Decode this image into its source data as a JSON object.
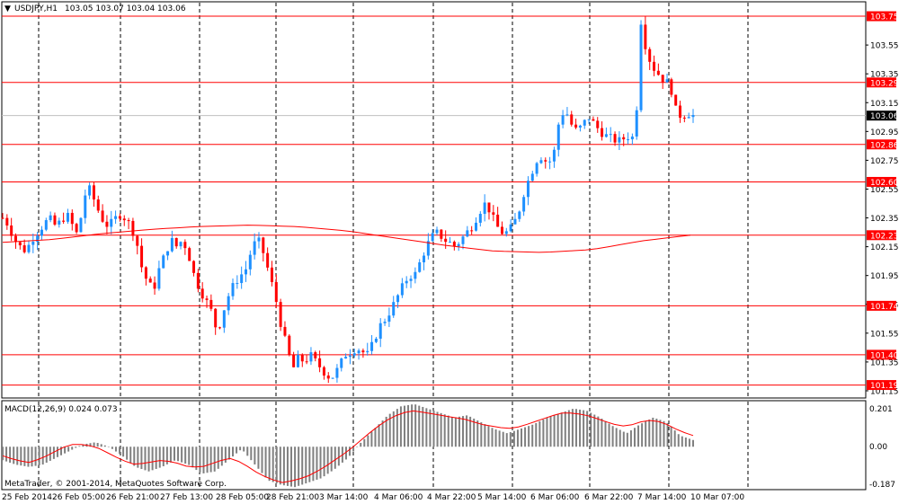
{
  "header": {
    "symbol_label": "USDJPY,H1",
    "ohlc_label": "103.05 103.07 103.04 103.06"
  },
  "macd": {
    "label": "MACD(12,26,9) 0.024 0.073",
    "axis_labels": [
      "0.201",
      "0.00",
      "-0.187"
    ]
  },
  "copyright": "MetaTrader, © 2001-2014, MetaQuotes Software Corp.",
  "colors": {
    "bull": "#1e90ff",
    "bear": "#ff0000",
    "level_line": "#ff0000",
    "ma_line": "#ff0000",
    "histogram": "#808080",
    "signal_line": "#ff0000",
    "grid": "#000000",
    "current_price_box": "#000000"
  },
  "chart_data": {
    "type": "candlestick",
    "symbol": "USDJPY",
    "timeframe": "H1",
    "price_axis": {
      "range": [
        101.1,
        103.85
      ],
      "tick_labels": [
        "103.55",
        "103.35",
        "103.15",
        "102.95",
        "102.75",
        "102.55",
        "102.35",
        "102.15",
        "101.95",
        "101.75",
        "101.55",
        "101.35",
        "101.15"
      ]
    },
    "time_axis_labels": [
      "25 Feb 2014",
      "26 Feb 05:00",
      "26 Feb 21:00",
      "27 Feb 13:00",
      "28 Feb 05:00",
      "28 Feb 21:00",
      "3 Mar 14:00",
      "4 Mar 06:00",
      "4 Mar 22:00",
      "5 Mar 14:00",
      "6 Mar 06:00",
      "6 Mar 22:00",
      "7 Mar 14:00",
      "10 Mar 07:00"
    ],
    "horizontal_levels": [
      "103.75",
      "103.29",
      "102.86",
      "102.60",
      "102.23",
      "101.74",
      "101.40",
      "101.19"
    ],
    "current_price": "103.06",
    "price_path": [
      102.35,
      102.3,
      102.2,
      102.15,
      102.12,
      102.2,
      102.25,
      102.3,
      102.35,
      102.3,
      102.32,
      102.38,
      102.3,
      102.22,
      102.5,
      102.55,
      102.45,
      102.35,
      102.3,
      102.32,
      102.38,
      102.35,
      102.3,
      102.2,
      102.0,
      101.9,
      101.85,
      102.0,
      102.1,
      102.2,
      102.15,
      102.2,
      102.1,
      101.95,
      101.85,
      101.78,
      101.7,
      101.55,
      101.7,
      101.82,
      101.9,
      101.95,
      102.0,
      102.15,
      102.2,
      102.1,
      101.95,
      101.8,
      101.6,
      101.45,
      101.3,
      101.38,
      101.35,
      101.4,
      101.35,
      101.3,
      101.25,
      101.25,
      101.32,
      101.4,
      101.42,
      101.45,
      101.42,
      101.4,
      101.5,
      101.6,
      101.65,
      101.72,
      101.8,
      101.88,
      101.95,
      101.95,
      102.05,
      102.15,
      102.22,
      102.25,
      102.2,
      102.18,
      102.15,
      102.2,
      102.25,
      102.3,
      102.38,
      102.45,
      102.4,
      102.3,
      102.25,
      102.25,
      102.3,
      102.4,
      102.55,
      102.65,
      102.75,
      102.78,
      102.72,
      102.8,
      103.05,
      103.1,
      103.0,
      102.95,
      103.0,
      103.05,
      103.0,
      102.95,
      102.92,
      102.9,
      102.88,
      102.9,
      102.92,
      102.9,
      103.72,
      103.5,
      103.4,
      103.35,
      103.3,
      103.28,
      103.1,
      103.05,
      103.08,
      103.06
    ],
    "ma_path": [
      102.18,
      102.2,
      102.24,
      102.27,
      102.29,
      102.3,
      102.29,
      102.26,
      102.21,
      102.16,
      102.12,
      102.11,
      102.13,
      102.19,
      102.23
    ],
    "macd_histogram_path": [
      -0.06,
      -0.08,
      -0.09,
      -0.08,
      -0.05,
      -0.02,
      0.01,
      0.02,
      0.0,
      -0.04,
      -0.09,
      -0.11,
      -0.09,
      -0.06,
      -0.08,
      -0.12,
      -0.11,
      -0.06,
      -0.01,
      -0.08,
      -0.15,
      -0.17,
      -0.18,
      -0.16,
      -0.14,
      -0.1,
      -0.05,
      0.02,
      0.08,
      0.14,
      0.18,
      0.19,
      0.17,
      0.15,
      0.13,
      0.14,
      0.11,
      0.08,
      0.06,
      0.08,
      0.1,
      0.13,
      0.15,
      0.17,
      0.16,
      0.13,
      0.09,
      0.06,
      0.1,
      0.13,
      0.11,
      0.05,
      0.03
    ],
    "macd_signal_path": [
      -0.04,
      -0.06,
      -0.07,
      -0.05,
      -0.02,
      0.01,
      0.01,
      0.0,
      -0.03,
      -0.06,
      -0.08,
      -0.07,
      -0.06,
      -0.07,
      -0.09,
      -0.09,
      -0.07,
      -0.05,
      -0.07,
      -0.11,
      -0.14,
      -0.16,
      -0.15,
      -0.13,
      -0.1,
      -0.06,
      -0.02,
      0.03,
      0.08,
      0.12,
      0.15,
      0.16,
      0.15,
      0.14,
      0.13,
      0.12,
      0.1,
      0.09,
      0.08,
      0.09,
      0.11,
      0.13,
      0.15,
      0.15,
      0.14,
      0.12,
      0.1,
      0.09,
      0.11,
      0.12,
      0.1,
      0.07,
      0.05
    ],
    "macd_range": [
      -0.187,
      0.201
    ]
  }
}
